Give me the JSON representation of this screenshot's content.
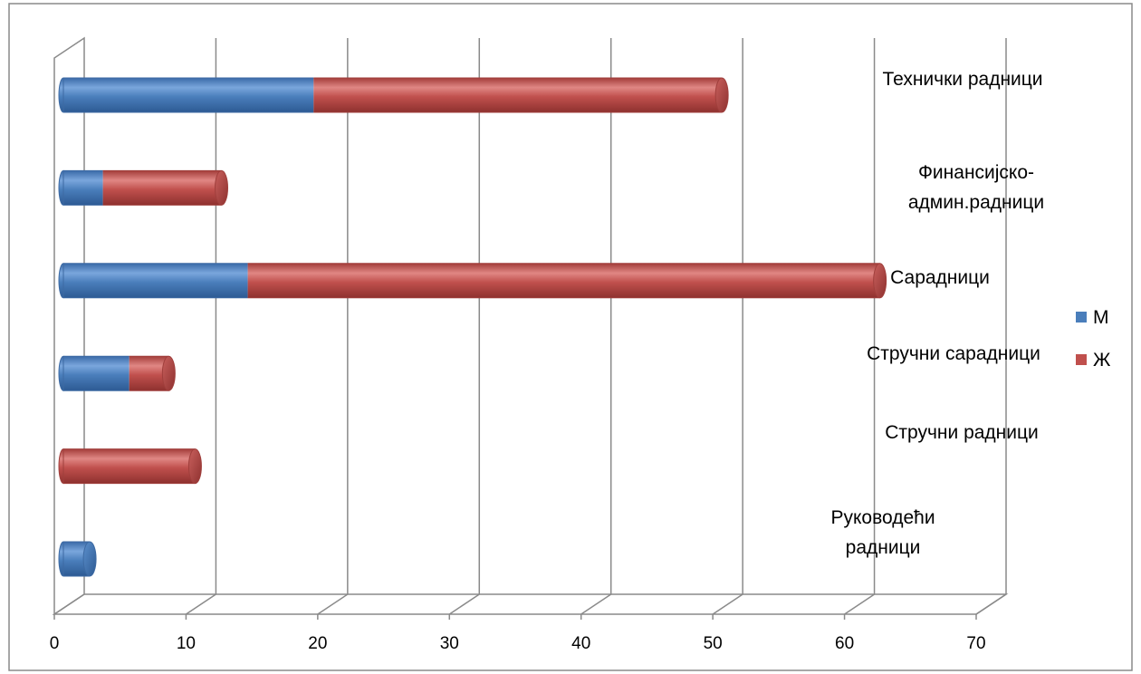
{
  "chart_data": {
    "type": "bar",
    "orientation": "horizontal",
    "stacked": true,
    "categories": [
      "Руководећи\nрадници",
      "Стручни радници",
      "Стручни сарадници",
      "Сарадници",
      "Финансијско-\nадмин.радници",
      "Технички радници"
    ],
    "series": [
      {
        "name": "М",
        "values": [
          2,
          0,
          5,
          14,
          3,
          19
        ],
        "color": "#4a7ebb"
      },
      {
        "name": "Ж",
        "values": [
          0,
          10,
          3,
          48,
          9,
          31
        ],
        "color": "#c0504d"
      }
    ],
    "xlim": [
      0,
      70
    ],
    "xticks": [
      0,
      10,
      20,
      30,
      40,
      50,
      60,
      70
    ],
    "grid": true,
    "legend_position": "right"
  }
}
